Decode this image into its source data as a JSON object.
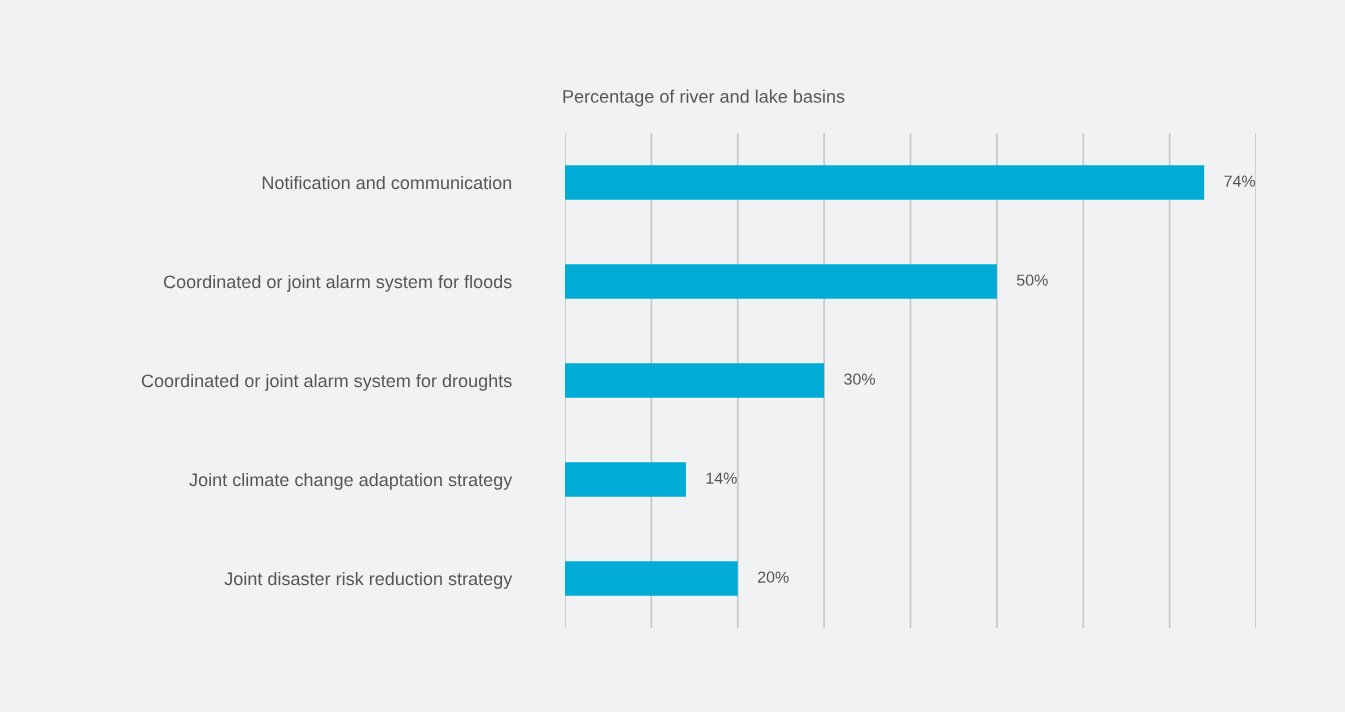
{
  "chart_data": {
    "type": "bar",
    "orientation": "horizontal",
    "title": "Percentage of river and lake basins",
    "categories": [
      "Notification and communication",
      "Coordinated or joint alarm system for floods",
      "Coordinated or joint alarm system for droughts",
      "Joint climate change adaptation strategy",
      "Joint disaster risk reduction strategy"
    ],
    "values": [
      74,
      50,
      30,
      14,
      20
    ],
    "value_labels": [
      "74%",
      "50%",
      "30%",
      "14%",
      "20%"
    ],
    "color": "#00acd6",
    "xlim": [
      0,
      80
    ],
    "xticks": [
      {
        "value": 0,
        "label": null
      },
      {
        "value": 10,
        "label": null
      },
      {
        "value": 20,
        "label": null
      },
      {
        "value": 30,
        "label": null
      },
      {
        "value": 40,
        "label": null
      },
      {
        "value": 50,
        "label": null
      },
      {
        "value": 60,
        "label": null
      },
      {
        "value": 70,
        "label": null
      },
      {
        "value": 80,
        "label": null
      }
    ],
    "grid": "x",
    "legend": false
  }
}
